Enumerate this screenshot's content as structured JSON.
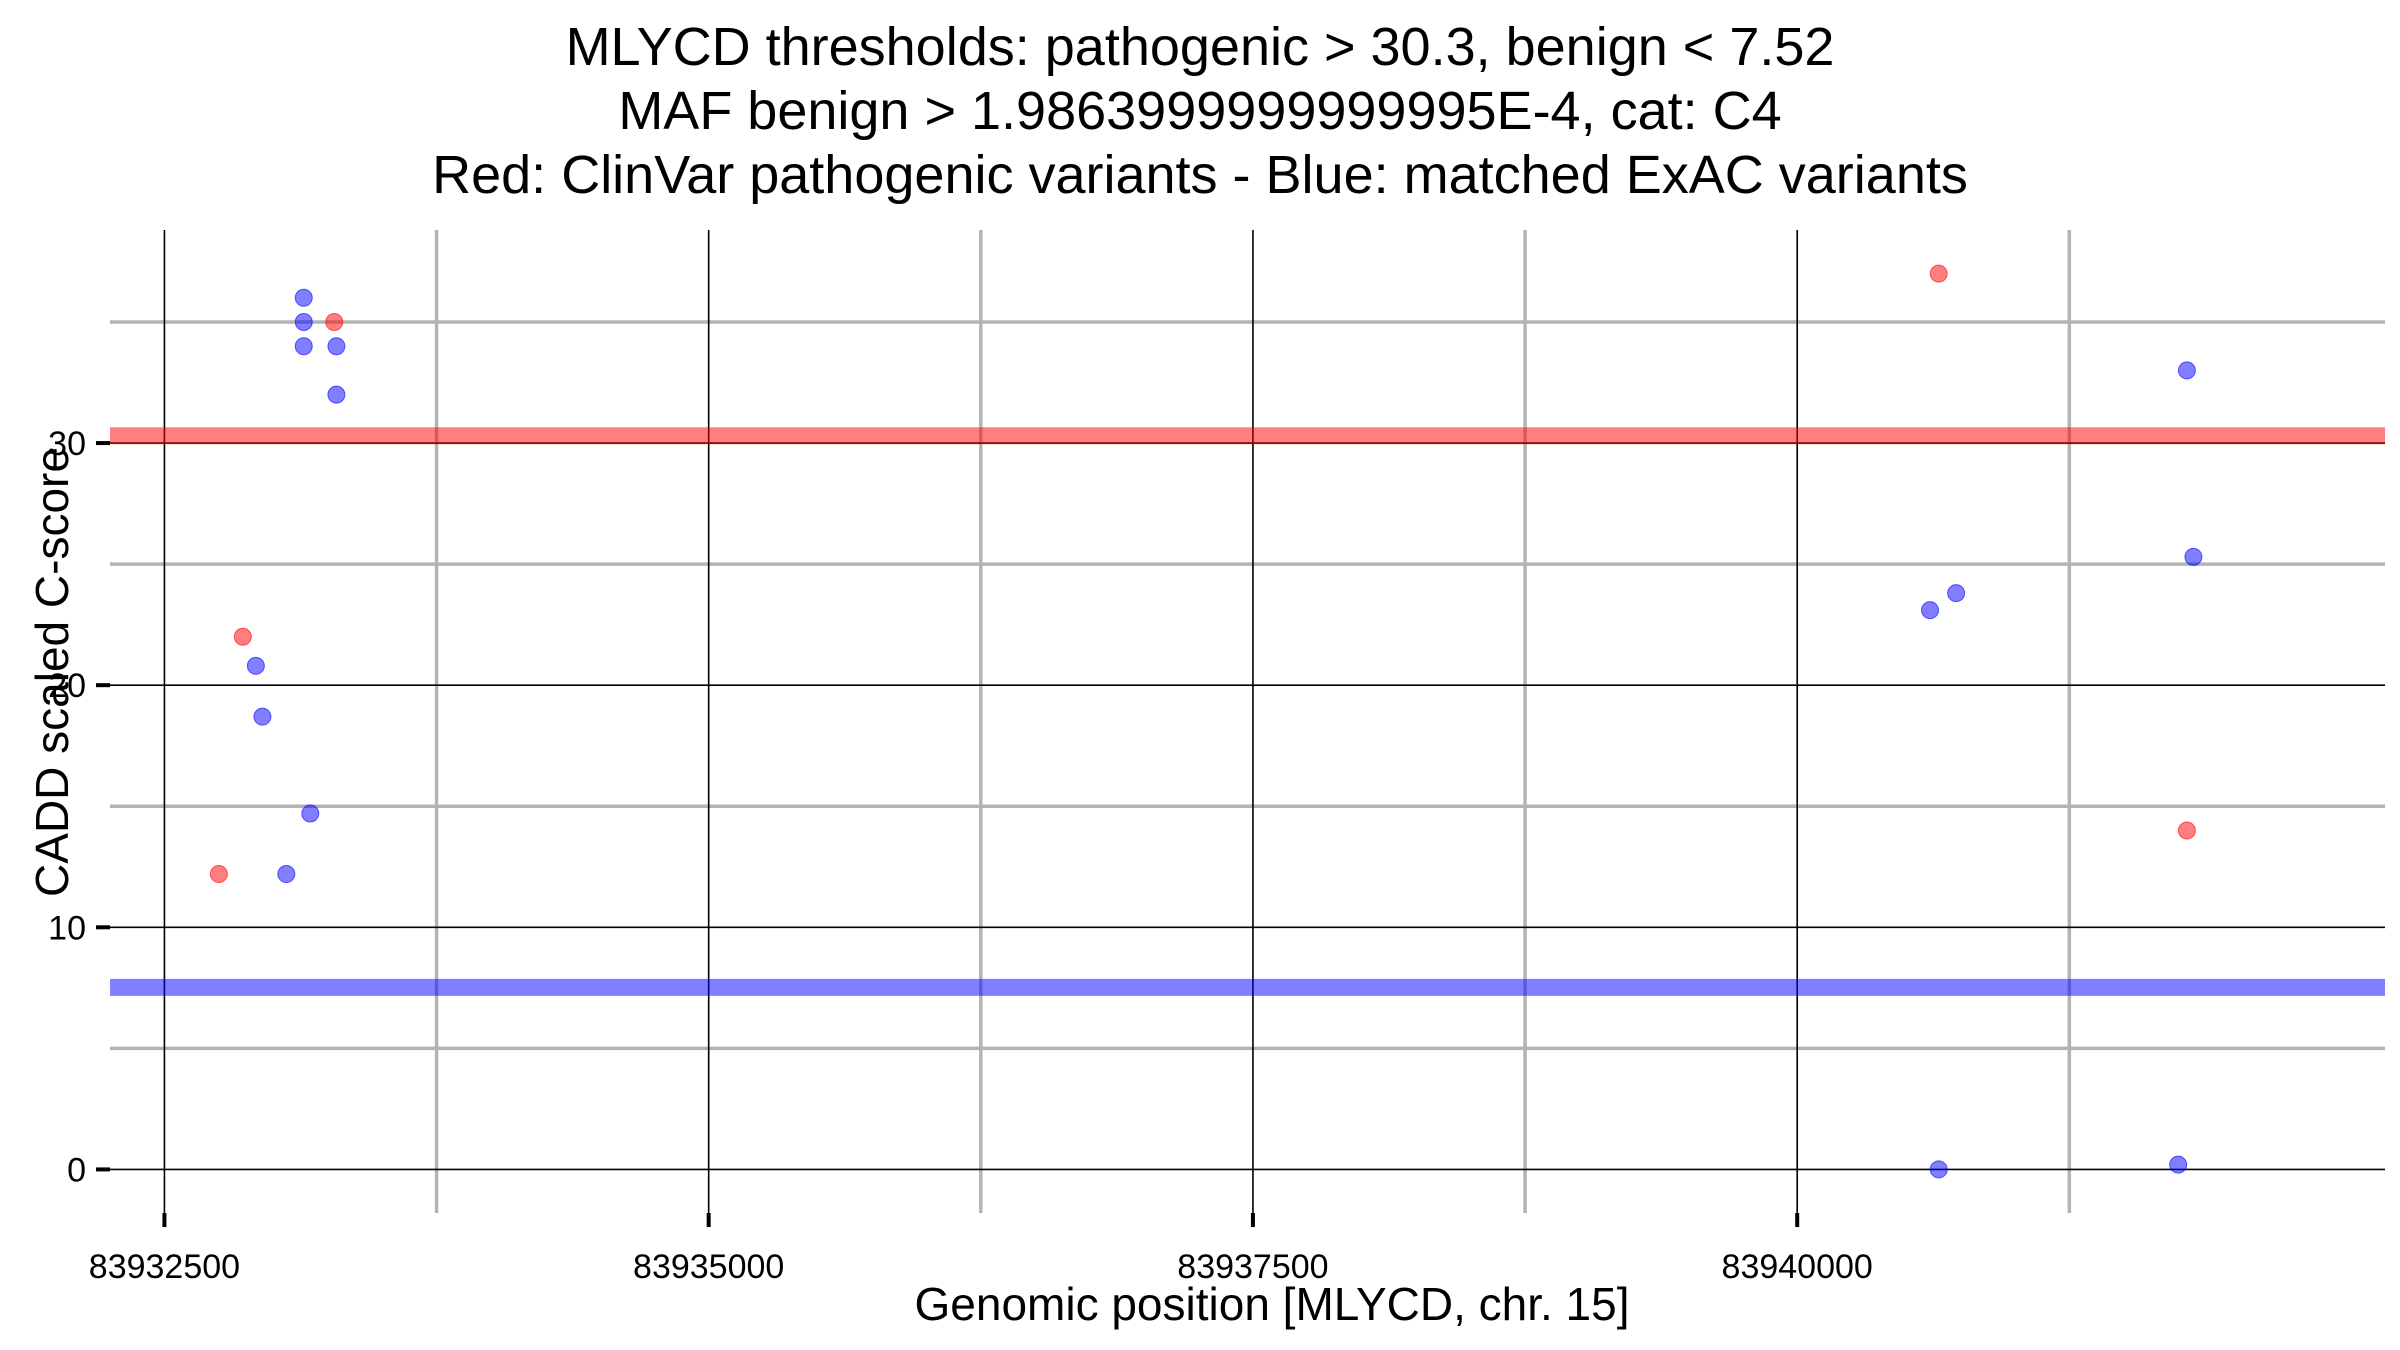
{
  "chart_data": {
    "type": "scatter",
    "title": [
      "MLYCD thresholds: pathogenic > 30.3, benign < 7.52",
      "MAF benign > 1.9863999999999995E-4, cat: C4",
      "Red: ClinVar pathogenic variants - Blue: matched ExAC variants"
    ],
    "xlabel": "Genomic position [MLYCD, chr. 15]",
    "ylabel": "CADD scaled C-score",
    "xlim": [
      83932250,
      83942700
    ],
    "ylim": [
      -1.8,
      38.8
    ],
    "x_ticks": [
      83932500,
      83935000,
      83937500,
      83940000
    ],
    "x_tick_labels": [
      "83932500",
      "83935000",
      "83937500",
      "83940000"
    ],
    "x_minor_gridlines": [
      83933750,
      83936250,
      83938750,
      83941250
    ],
    "y_ticks": [
      0,
      10,
      20,
      30
    ],
    "y_tick_labels": [
      "0",
      "10",
      "20",
      "30"
    ],
    "y_minor_gridlines": [
      5,
      15,
      25,
      35
    ],
    "grid": true,
    "thresholds": [
      {
        "value": 30.3,
        "color": "#ff0000",
        "label": "pathogenic"
      },
      {
        "value": 7.52,
        "color": "#0000ff",
        "label": "benign"
      }
    ],
    "series": [
      {
        "color": "#ff0000",
        "points": [
          {
            "x": 83932750,
            "y": 12.2
          },
          {
            "x": 83932860,
            "y": 22.0
          },
          {
            "x": 83933280,
            "y": 35.0
          },
          {
            "x": 83940650,
            "y": 37.0
          },
          {
            "x": 83941790,
            "y": 14.0
          }
        ]
      },
      {
        "color": "#0000ff",
        "points": [
          {
            "x": 83932920,
            "y": 20.8
          },
          {
            "x": 83932950,
            "y": 18.7
          },
          {
            "x": 83933060,
            "y": 12.2
          },
          {
            "x": 83933140,
            "y": 36.0
          },
          {
            "x": 83933140,
            "y": 35.0
          },
          {
            "x": 83933140,
            "y": 34.0
          },
          {
            "x": 83933170,
            "y": 14.7
          },
          {
            "x": 83933290,
            "y": 34.0
          },
          {
            "x": 83933290,
            "y": 32.0
          },
          {
            "x": 83940610,
            "y": 23.1
          },
          {
            "x": 83940650,
            "y": 0.0
          },
          {
            "x": 83940730,
            "y": 23.8
          },
          {
            "x": 83941750,
            "y": 0.2
          },
          {
            "x": 83941790,
            "y": 33.0
          },
          {
            "x": 83941820,
            "y": 25.3
          }
        ]
      }
    ]
  }
}
